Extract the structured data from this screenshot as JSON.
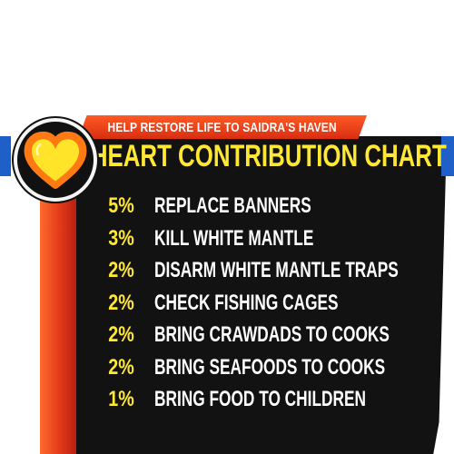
{
  "header": {
    "subtitle": "HELP RESTORE LIFE TO SAIDRA'S HAVEN",
    "title": "HEART CONTRIBUTION CHART"
  },
  "badge": {
    "icon": "heart-icon"
  },
  "colors": {
    "accent_yellow": "#ffe833",
    "header_red": "#d92e12",
    "edge_blue": "#1f5fc8",
    "panel_black": "#121212"
  },
  "contributions": [
    {
      "percent": "5%",
      "task": "REPLACE BANNERS"
    },
    {
      "percent": "3%",
      "task": "KILL WHITE MANTLE"
    },
    {
      "percent": "2%",
      "task": "DISARM WHITE MANTLE TRAPS"
    },
    {
      "percent": "2%",
      "task": "CHECK FISHING CAGES"
    },
    {
      "percent": "2%",
      "task": "BRING CRAWDADS TO COOKS"
    },
    {
      "percent": "2%",
      "task": "BRING SEAFOODS TO COOKS"
    },
    {
      "percent": "1%",
      "task": "BRING FOOD TO CHILDREN"
    }
  ]
}
